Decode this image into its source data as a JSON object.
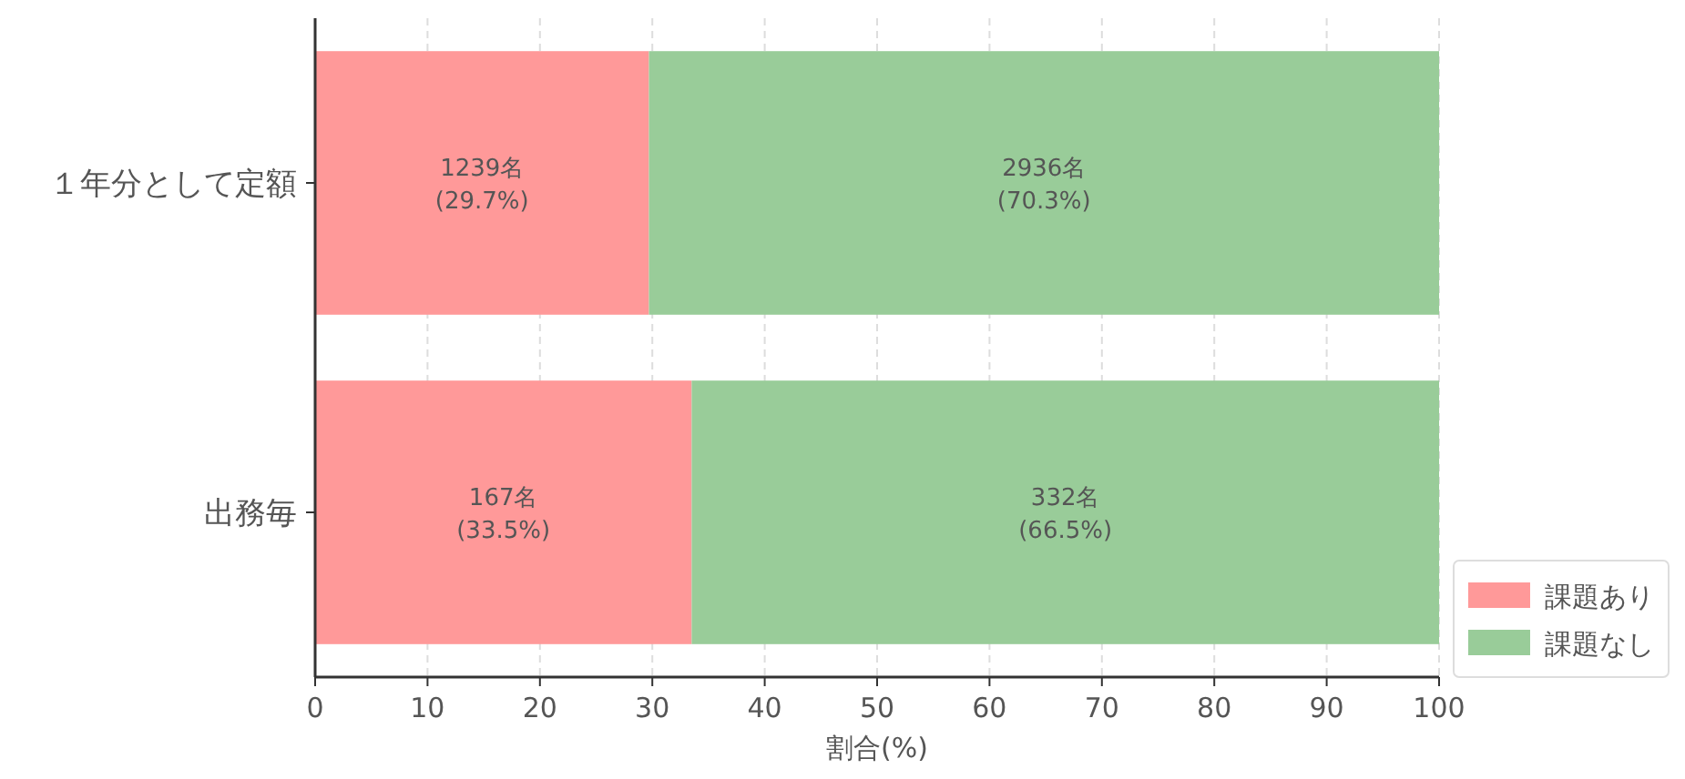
{
  "chart_data": {
    "type": "bar",
    "orientation": "horizontal",
    "stacked": true,
    "xlabel": "割合(%)",
    "categories": [
      "１年分として定額",
      "出務毎"
    ],
    "series": [
      {
        "name": "課題あり",
        "color": "#ff9999",
        "values": [
          29.7,
          33.5
        ],
        "value_labels": [
          "1239名\n(29.7%)",
          "167名\n(33.5%)"
        ]
      },
      {
        "name": "課題なし",
        "color": "#99cc99",
        "values": [
          70.3,
          66.5
        ],
        "value_labels": [
          "2936名\n(70.3%)",
          "332名\n(66.5%)"
        ]
      }
    ],
    "xlim": [
      0,
      100
    ],
    "xticks": [
      0,
      10,
      20,
      30,
      40,
      50,
      60,
      70,
      80,
      90,
      100
    ],
    "grid": "x",
    "legend": "bottom right"
  }
}
